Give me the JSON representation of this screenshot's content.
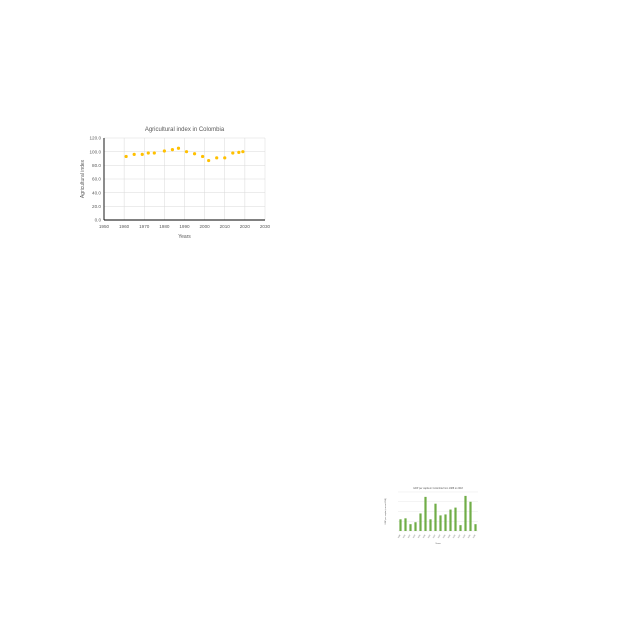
{
  "chart_data": [
    {
      "type": "scatter",
      "title": "Agricultural index in Colombia",
      "xlabel": "Years",
      "ylabel": "Agricultural index",
      "xlim": [
        1950,
        2030
      ],
      "ylim": [
        0,
        120
      ],
      "x_ticks": [
        "1950",
        "1960",
        "1970",
        "1980",
        "1990",
        "2000",
        "2010",
        "2020",
        "2030"
      ],
      "y_ticks": [
        "0.0",
        "20.0",
        "40.0",
        "60.0",
        "80.0",
        "100.0",
        "120.0"
      ],
      "grid": true,
      "colors": {
        "marker": "#FFC000",
        "grid": "#D9D9D9",
        "axis": "#000000"
      },
      "series": [
        {
          "x": [
            1961,
            1965,
            1969,
            1972,
            1975,
            1980,
            1984,
            1987,
            1991,
            1995,
            1999,
            2002,
            2006,
            2010,
            2014,
            2017,
            2019
          ],
          "y": [
            93,
            96,
            96,
            98,
            98,
            101,
            103,
            105,
            100,
            97,
            93,
            87,
            91,
            91,
            98,
            99,
            100
          ]
        }
      ]
    },
    {
      "type": "bar",
      "title": "GDP per capita in Colombia from 1988 to 2018",
      "xlabel": "Years",
      "ylabel": "GDP per capita (current US$)",
      "grid": true,
      "colors": {
        "bar": "#70AD47",
        "grid": "#D9D9D9"
      },
      "categories": [
        "1988",
        "1990",
        "1992",
        "1994",
        "1996",
        "1998",
        "2000",
        "2002",
        "2004",
        "2006",
        "2008",
        "2010",
        "2012",
        "2014",
        "2016",
        "2018"
      ],
      "values": [
        1200,
        1300,
        700,
        900,
        1800,
        3500,
        1200,
        2800,
        1600,
        1700,
        2200,
        2400,
        600,
        3600,
        3000,
        700
      ]
    }
  ]
}
